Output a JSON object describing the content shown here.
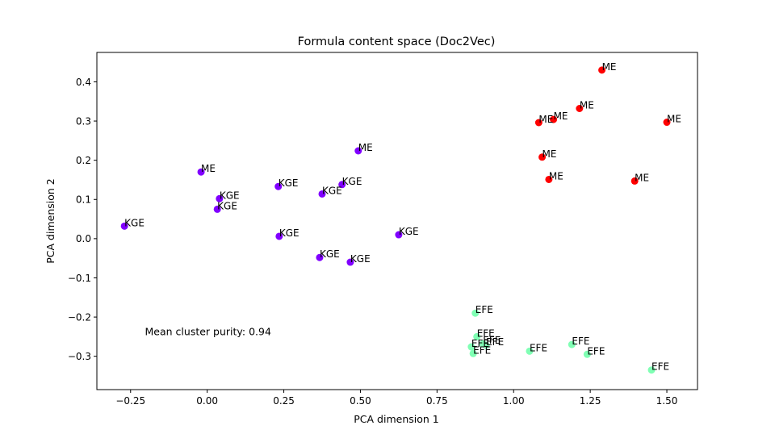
{
  "chart_data": {
    "type": "scatter",
    "title": "Formula content space (Doc2Vec)",
    "xlabel": "PCA dimension 1",
    "ylabel": "PCA dimension 2",
    "xlim": [
      -0.36,
      1.6
    ],
    "ylim": [
      -0.385,
      0.475
    ],
    "xticks": [
      -0.25,
      0.0,
      0.25,
      0.5,
      0.75,
      1.0,
      1.25,
      1.5
    ],
    "xtick_labels": [
      "−0.25",
      "0.00",
      "0.25",
      "0.50",
      "0.75",
      "1.00",
      "1.25",
      "1.50"
    ],
    "yticks": [
      -0.3,
      -0.2,
      -0.1,
      0.0,
      0.1,
      0.2,
      0.3,
      0.4
    ],
    "ytick_labels": [
      "−0.3",
      "−0.2",
      "−0.1",
      "0.0",
      "0.1",
      "0.2",
      "0.3",
      "0.4"
    ],
    "grid": false,
    "annotation": "Mean cluster purity: 0.94",
    "colors": {
      "KGE": "#8000ff",
      "ME": "#ff0000",
      "EFE": "#80ffb4"
    },
    "points": [
      {
        "x": -0.27,
        "y": 0.032,
        "label": "KGE",
        "color": "#8000ff"
      },
      {
        "x": -0.02,
        "y": 0.17,
        "label": "ME",
        "color": "#8000ff"
      },
      {
        "x": 0.033,
        "y": 0.075,
        "label": "KGE",
        "color": "#8000ff"
      },
      {
        "x": 0.04,
        "y": 0.102,
        "label": "KGE",
        "color": "#8000ff"
      },
      {
        "x": 0.232,
        "y": 0.133,
        "label": "KGE",
        "color": "#8000ff"
      },
      {
        "x": 0.235,
        "y": 0.006,
        "label": "KGE",
        "color": "#8000ff"
      },
      {
        "x": 0.367,
        "y": -0.048,
        "label": "KGE",
        "color": "#8000ff"
      },
      {
        "x": 0.375,
        "y": 0.114,
        "label": "KGE",
        "color": "#8000ff"
      },
      {
        "x": 0.44,
        "y": 0.138,
        "label": "KGE",
        "color": "#8000ff"
      },
      {
        "x": 0.467,
        "y": -0.06,
        "label": "KGE",
        "color": "#8000ff"
      },
      {
        "x": 0.493,
        "y": 0.224,
        "label": "ME",
        "color": "#8000ff"
      },
      {
        "x": 0.625,
        "y": 0.01,
        "label": "KGE",
        "color": "#8000ff"
      },
      {
        "x": 1.082,
        "y": 0.296,
        "label": "ME",
        "color": "#ff0000"
      },
      {
        "x": 1.093,
        "y": 0.208,
        "label": "ME",
        "color": "#ff0000"
      },
      {
        "x": 1.115,
        "y": 0.151,
        "label": "ME",
        "color": "#ff0000"
      },
      {
        "x": 1.13,
        "y": 0.304,
        "label": "ME",
        "color": "#ff0000"
      },
      {
        "x": 1.215,
        "y": 0.332,
        "label": "ME",
        "color": "#ff0000"
      },
      {
        "x": 1.288,
        "y": 0.43,
        "label": "ME",
        "color": "#ff0000"
      },
      {
        "x": 1.395,
        "y": 0.147,
        "label": "ME",
        "color": "#ff0000"
      },
      {
        "x": 1.5,
        "y": 0.297,
        "label": "ME",
        "color": "#ff0000"
      },
      {
        "x": 0.875,
        "y": -0.19,
        "label": "EFE",
        "color": "#80ffb4"
      },
      {
        "x": 0.88,
        "y": -0.25,
        "label": "EFE",
        "color": "#80ffb4"
      },
      {
        "x": 0.862,
        "y": -0.276,
        "label": "EFE",
        "color": "#80ffb4"
      },
      {
        "x": 0.868,
        "y": -0.293,
        "label": "EFE",
        "color": "#80ffb4"
      },
      {
        "x": 0.9,
        "y": -0.268,
        "label": "EFE",
        "color": "#80ffb4"
      },
      {
        "x": 0.91,
        "y": -0.272,
        "label": "EFE",
        "color": "#80ffb4"
      },
      {
        "x": 1.052,
        "y": -0.287,
        "label": "EFE",
        "color": "#80ffb4"
      },
      {
        "x": 1.19,
        "y": -0.27,
        "label": "EFE",
        "color": "#80ffb4"
      },
      {
        "x": 1.24,
        "y": -0.295,
        "label": "EFE",
        "color": "#80ffb4"
      },
      {
        "x": 1.45,
        "y": -0.335,
        "label": "EFE",
        "color": "#80ffb4"
      }
    ]
  }
}
